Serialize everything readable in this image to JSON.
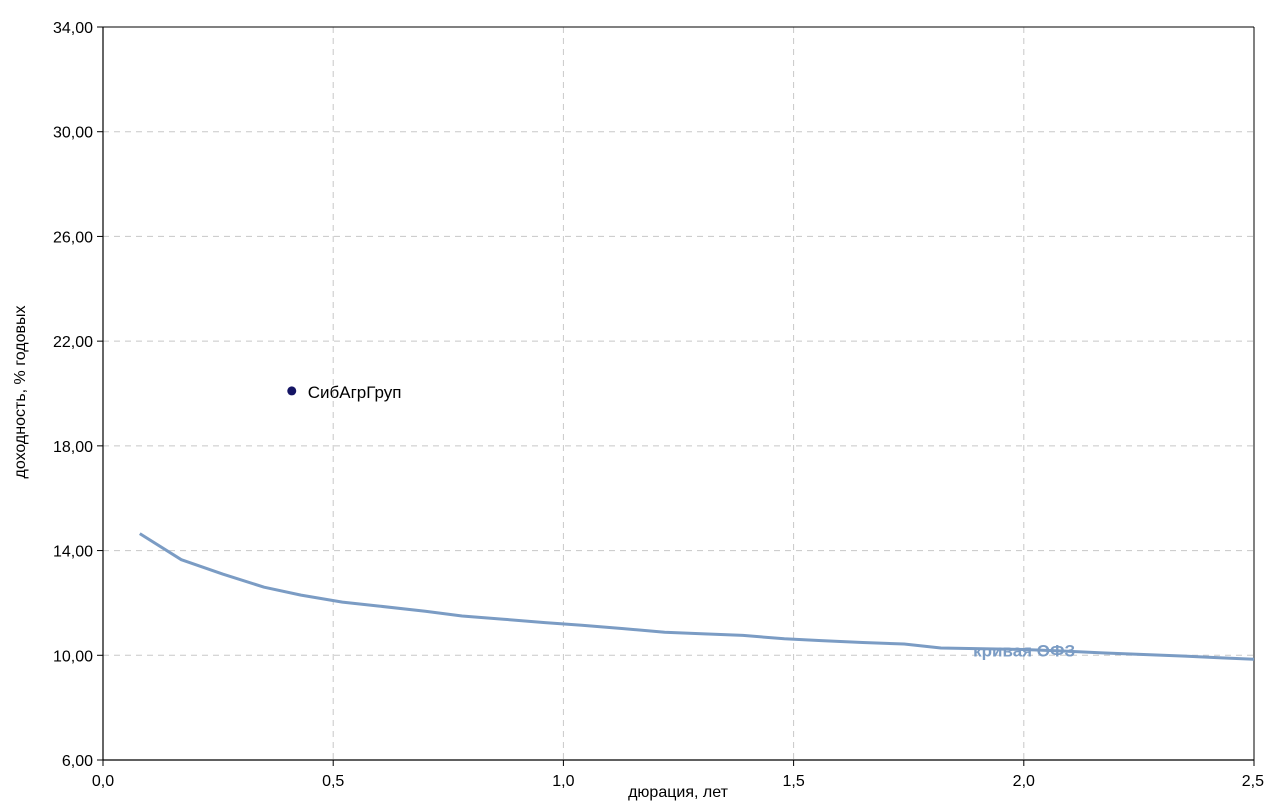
{
  "chart_data": {
    "type": "scatter",
    "title": "",
    "xlabel": "дюрация, лет",
    "ylabel": "доходность, % годовых",
    "xlim": [
      0,
      2.5
    ],
    "ylim": [
      6,
      34
    ],
    "x_ticks": [
      0,
      0.5,
      1,
      1.5,
      2,
      2.5
    ],
    "x_tick_labels": [
      "0,0",
      "0,5",
      "1,0",
      "1,5",
      "2,0",
      "2,5"
    ],
    "y_ticks": [
      6,
      10,
      14,
      18,
      22,
      26,
      30,
      34
    ],
    "y_tick_labels": [
      "6,00",
      "10,00",
      "14,00",
      "18,00",
      "22,00",
      "26,00",
      "30,00",
      "34,00"
    ],
    "grid": true,
    "series": [
      {
        "name": "кривая ОФЗ",
        "kind": "line",
        "color": "#7B9CC4",
        "points": [
          [
            0.08,
            14.65
          ],
          [
            0.17,
            13.65
          ],
          [
            0.26,
            13.1
          ],
          [
            0.35,
            12.6
          ],
          [
            0.43,
            12.3
          ],
          [
            0.52,
            12.03
          ],
          [
            0.6,
            11.88
          ],
          [
            0.7,
            11.68
          ],
          [
            0.78,
            11.5
          ],
          [
            0.87,
            11.38
          ],
          [
            0.96,
            11.25
          ],
          [
            1.04,
            11.15
          ],
          [
            1.13,
            11.02
          ],
          [
            1.22,
            10.88
          ],
          [
            1.3,
            10.82
          ],
          [
            1.39,
            10.76
          ],
          [
            1.48,
            10.63
          ],
          [
            1.56,
            10.56
          ],
          [
            1.65,
            10.49
          ],
          [
            1.74,
            10.43
          ],
          [
            1.82,
            10.28
          ],
          [
            1.91,
            10.25
          ],
          [
            2.0,
            10.22
          ],
          [
            2.09,
            10.16
          ],
          [
            2.17,
            10.09
          ],
          [
            2.26,
            10.03
          ],
          [
            2.35,
            9.97
          ],
          [
            2.43,
            9.9
          ],
          [
            2.5,
            9.85
          ]
        ]
      },
      {
        "name": "СибАгрГруп",
        "kind": "point",
        "color": "#141464",
        "points": [
          [
            0.41,
            20.1
          ]
        ]
      }
    ]
  }
}
